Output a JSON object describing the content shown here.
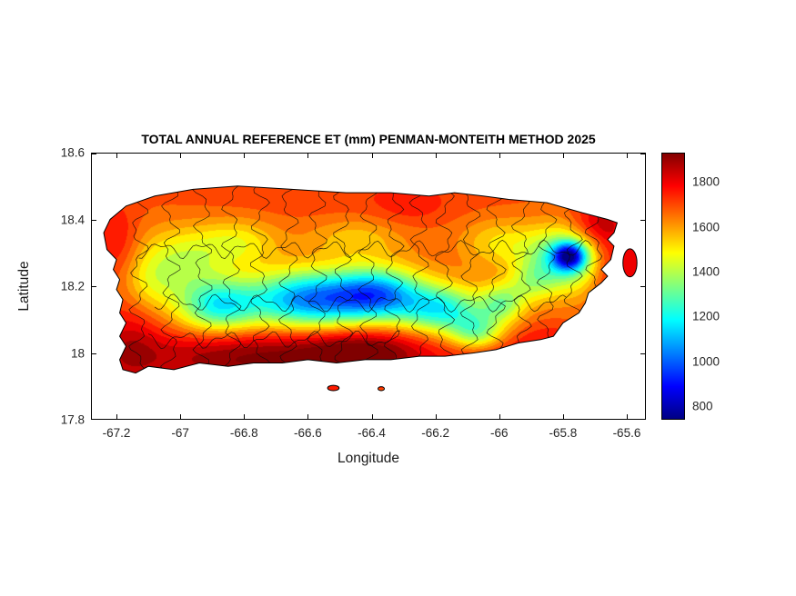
{
  "figure": {
    "background": "#ffffff",
    "axis_color": "#000000",
    "boundary_line_color": "#000000"
  },
  "chart_data": {
    "type": "heatmap",
    "subtype": "filled-contour-geographic-map",
    "region": "Puerto Rico (municipal boundaries overlaid)",
    "title": "TOTAL ANNUAL REFERENCE ET (mm) PENMAN-MONTEITH METHOD 2025",
    "xlabel": "Longitude",
    "ylabel": "Latitude",
    "units": "mm",
    "xlim": [
      -67.28,
      -65.54
    ],
    "ylim": [
      17.8,
      18.6
    ],
    "xticks": [
      -67.2,
      -67,
      -66.8,
      -66.6,
      -66.4,
      -66.2,
      -66,
      -65.8,
      -65.6
    ],
    "xtick_labels": [
      "-67.2",
      "-67",
      "-66.8",
      "-66.6",
      "-66.4",
      "-66.2",
      "-66",
      "-65.8",
      "-65.6"
    ],
    "yticks": [
      17.8,
      18,
      18.2,
      18.4,
      18.6
    ],
    "ytick_labels": [
      "17.8",
      "18",
      "18.2",
      "18.4",
      "18.6"
    ],
    "grid": false,
    "colorbar": {
      "position": "right",
      "colormap": "jet",
      "min": 740,
      "max": 1930,
      "ticks": [
        800,
        1000,
        1200,
        1400,
        1600,
        1800
      ]
    },
    "value_summary": {
      "coastal_typical_mm": 1650,
      "north_coast_mm": 1700,
      "south_coast_max_mm": 1920,
      "central_mountains_min_mm": 960,
      "el_yunque_min_mm": 760
    },
    "feature_format": "[lon, lat, sigma_lon, sigma_lat, delta_mm]",
    "field_model": {
      "base": 1660,
      "clamp": [
        745,
        1925
      ],
      "band_step": 50,
      "features": [
        [
          -66.75,
          17.985,
          0.3,
          0.06,
          280
        ],
        [
          -66.42,
          18.0,
          0.13,
          0.05,
          220
        ],
        [
          -67.16,
          18.03,
          0.07,
          0.1,
          140
        ],
        [
          -67.2,
          18.33,
          0.05,
          0.08,
          120
        ],
        [
          -66.5,
          18.47,
          0.5,
          0.06,
          50
        ],
        [
          -65.69,
          18.385,
          0.06,
          0.045,
          170
        ],
        [
          -65.655,
          18.26,
          0.045,
          0.09,
          150
        ],
        [
          -66.02,
          17.985,
          0.11,
          0.05,
          130
        ],
        [
          -66.28,
          18.44,
          0.08,
          0.04,
          60
        ],
        [
          -65.83,
          18.03,
          0.08,
          0.045,
          100
        ],
        [
          -65.585,
          18.28,
          0.03,
          0.06,
          130
        ],
        [
          -66.88,
          18.14,
          0.09,
          0.055,
          -430
        ],
        [
          -66.6,
          18.16,
          0.13,
          0.06,
          -600
        ],
        [
          -66.38,
          18.175,
          0.1,
          0.055,
          -560
        ],
        [
          -66.18,
          18.13,
          0.09,
          0.05,
          -430
        ],
        [
          -66.07,
          18.06,
          0.06,
          0.04,
          -320
        ],
        [
          -65.99,
          18.15,
          0.05,
          0.04,
          -280
        ],
        [
          -65.8,
          18.28,
          0.085,
          0.065,
          -430
        ],
        [
          -65.78,
          18.29,
          0.035,
          0.028,
          -560
        ],
        [
          -67.0,
          18.27,
          0.1,
          0.07,
          -230
        ],
        [
          -66.82,
          18.33,
          0.09,
          0.05,
          -170
        ],
        [
          -66.45,
          18.34,
          0.1,
          0.045,
          -120
        ],
        [
          -66.0,
          18.33,
          0.08,
          0.05,
          -140
        ],
        [
          -65.9,
          18.21,
          0.05,
          0.04,
          -160
        ],
        [
          -67.1,
          18.2,
          0.06,
          0.06,
          -110
        ]
      ]
    },
    "island_outline": [
      [
        -67.24,
        18.36
      ],
      [
        -67.22,
        18.4
      ],
      [
        -67.17,
        18.44
      ],
      [
        -67.08,
        18.47
      ],
      [
        -66.96,
        18.49
      ],
      [
        -66.82,
        18.5
      ],
      [
        -66.65,
        18.49
      ],
      [
        -66.48,
        18.48
      ],
      [
        -66.34,
        18.48
      ],
      [
        -66.22,
        18.47
      ],
      [
        -66.14,
        18.48
      ],
      [
        -66.05,
        18.47
      ],
      [
        -65.97,
        18.46
      ],
      [
        -65.85,
        18.45
      ],
      [
        -65.74,
        18.42
      ],
      [
        -65.66,
        18.4
      ],
      [
        -65.63,
        18.39
      ],
      [
        -65.64,
        18.36
      ],
      [
        -65.66,
        18.34
      ],
      [
        -65.64,
        18.32
      ],
      [
        -65.65,
        18.28
      ],
      [
        -65.68,
        18.25
      ],
      [
        -65.66,
        18.23
      ],
      [
        -65.68,
        18.21
      ],
      [
        -65.72,
        18.18
      ],
      [
        -65.73,
        18.15
      ],
      [
        -65.75,
        18.12
      ],
      [
        -65.8,
        18.09
      ],
      [
        -65.83,
        18.05
      ],
      [
        -65.87,
        18.04
      ],
      [
        -65.94,
        18.03
      ],
      [
        -66.01,
        18.01
      ],
      [
        -66.08,
        18.0
      ],
      [
        -66.17,
        17.99
      ],
      [
        -66.25,
        17.99
      ],
      [
        -66.34,
        17.98
      ],
      [
        -66.42,
        17.98
      ],
      [
        -66.51,
        17.97
      ],
      [
        -66.6,
        17.98
      ],
      [
        -66.68,
        17.97
      ],
      [
        -66.77,
        17.97
      ],
      [
        -66.85,
        17.96
      ],
      [
        -66.94,
        17.97
      ],
      [
        -67.02,
        17.95
      ],
      [
        -67.1,
        17.96
      ],
      [
        -67.14,
        17.94
      ],
      [
        -67.18,
        17.95
      ],
      [
        -67.19,
        17.98
      ],
      [
        -67.17,
        18.02
      ],
      [
        -67.19,
        18.05
      ],
      [
        -67.17,
        18.09
      ],
      [
        -67.19,
        18.12
      ],
      [
        -67.18,
        18.16
      ],
      [
        -67.2,
        18.19
      ],
      [
        -67.19,
        18.22
      ],
      [
        -67.21,
        18.25
      ],
      [
        -67.2,
        18.28
      ],
      [
        -67.23,
        18.31
      ]
    ],
    "islets": [
      {
        "cx": -66.52,
        "cy": 17.895,
        "rx": 0.018,
        "ry": 0.008
      },
      {
        "cx": -66.37,
        "cy": 17.893,
        "rx": 0.01,
        "ry": 0.006
      },
      {
        "cx": -65.59,
        "cy": 18.27,
        "rx": 0.022,
        "ry": 0.042
      }
    ],
    "boundaries": {
      "vertical_lons": [
        -67.13,
        -67.03,
        -66.93,
        -66.84,
        -66.75,
        -66.66,
        -66.57,
        -66.49,
        -66.41,
        -66.33,
        -66.25,
        -66.17,
        -66.09,
        -66.01,
        -65.93,
        -65.85,
        -65.77,
        -65.7
      ],
      "horizontals": [
        {
          "lat": 18.31,
          "lon_min": -67.13,
          "lon_max": -65.7
        },
        {
          "lat": 18.15,
          "lon_min": -67.08,
          "lon_max": -65.78
        },
        {
          "lat": 18.04,
          "lon_min": -67.1,
          "lon_max": -66.3
        }
      ]
    }
  }
}
